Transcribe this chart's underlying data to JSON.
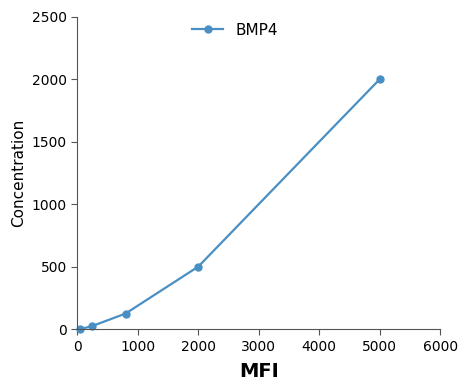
{
  "x": [
    50,
    250,
    800,
    2000,
    5000
  ],
  "y": [
    0,
    25,
    125,
    500,
    2000
  ],
  "line_color": "#4a8fc4",
  "marker": "o",
  "marker_size": 5,
  "label": "BMP4",
  "xlabel": "MFI",
  "ylabel": "Concentration",
  "xlim": [
    0,
    6000
  ],
  "ylim": [
    0,
    2500
  ],
  "xticks": [
    0,
    1000,
    2000,
    3000,
    4000,
    5000,
    6000
  ],
  "yticks": [
    0,
    500,
    1000,
    1500,
    2000,
    2500
  ],
  "xlabel_fontsize": 14,
  "ylabel_fontsize": 11,
  "tick_fontsize": 10,
  "legend_fontsize": 11,
  "background_color": "#ffffff",
  "line_width": 1.6,
  "spine_color": "#555555"
}
